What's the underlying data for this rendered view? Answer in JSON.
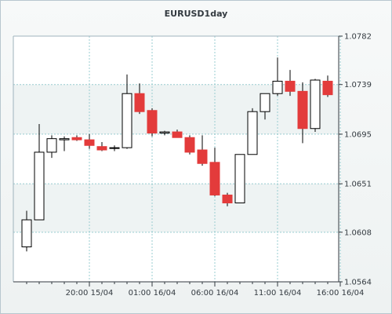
{
  "chart_data": {
    "type": "candlestick",
    "title": "EURUSD1day",
    "xlabel": "",
    "ylabel": "",
    "ylim": [
      1.0564,
      1.0782
    ],
    "y_ticks": [
      "1.0782",
      "1.0739",
      "1.0695",
      "1.0651",
      "1.0608",
      "1.0564"
    ],
    "y_tick_values": [
      1.0782,
      1.0739,
      1.0695,
      1.0651,
      1.0608,
      1.0564
    ],
    "x_tick_labels": [
      "20:00 15/04",
      "01:00 16/04",
      "06:00 16/04",
      "11:00 16/04",
      "16:00 16/04"
    ],
    "x_tick_index": [
      5,
      10,
      15,
      20,
      25
    ],
    "grid": true,
    "up_color": "#ffffff",
    "down_color": "#e33b3b",
    "candles": [
      {
        "o": 1.0595,
        "h": 1.0627,
        "l": 1.0591,
        "c": 1.0619
      },
      {
        "o": 1.0619,
        "h": 1.0704,
        "l": 1.0619,
        "c": 1.0679
      },
      {
        "o": 1.0679,
        "h": 1.0694,
        "l": 1.0674,
        "c": 1.0691
      },
      {
        "o": 1.069,
        "h": 1.0693,
        "l": 1.068,
        "c": 1.0691
      },
      {
        "o": 1.0692,
        "h": 1.0694,
        "l": 1.0689,
        "c": 1.069
      },
      {
        "o": 1.069,
        "h": 1.0695,
        "l": 1.0682,
        "c": 1.0685
      },
      {
        "o": 1.0684,
        "h": 1.0688,
        "l": 1.068,
        "c": 1.0681
      },
      {
        "o": 1.0683,
        "h": 1.0685,
        "l": 1.068,
        "c": 1.0683
      },
      {
        "o": 1.0683,
        "h": 1.0748,
        "l": 1.0682,
        "c": 1.0731
      },
      {
        "o": 1.0731,
        "h": 1.074,
        "l": 1.0713,
        "c": 1.0715
      },
      {
        "o": 1.0716,
        "h": 1.0718,
        "l": 1.0693,
        "c": 1.0696
      },
      {
        "o": 1.0696,
        "h": 1.0698,
        "l": 1.0694,
        "c": 1.0697
      },
      {
        "o": 1.0697,
        "h": 1.0699,
        "l": 1.0692,
        "c": 1.0692
      },
      {
        "o": 1.0692,
        "h": 1.0694,
        "l": 1.0677,
        "c": 1.0679
      },
      {
        "o": 1.0681,
        "h": 1.0694,
        "l": 1.0667,
        "c": 1.0669
      },
      {
        "o": 1.067,
        "h": 1.0683,
        "l": 1.064,
        "c": 1.0641
      },
      {
        "o": 1.0641,
        "h": 1.0643,
        "l": 1.0631,
        "c": 1.0634
      },
      {
        "o": 1.0634,
        "h": 1.0677,
        "l": 1.0634,
        "c": 1.0677
      },
      {
        "o": 1.0677,
        "h": 1.0718,
        "l": 1.0677,
        "c": 1.0715
      },
      {
        "o": 1.0715,
        "h": 1.0731,
        "l": 1.0708,
        "c": 1.0731
      },
      {
        "o": 1.0731,
        "h": 1.0763,
        "l": 1.0729,
        "c": 1.0742
      },
      {
        "o": 1.0742,
        "h": 1.0752,
        "l": 1.0729,
        "c": 1.0733
      },
      {
        "o": 1.0733,
        "h": 1.0741,
        "l": 1.0687,
        "c": 1.07
      },
      {
        "o": 1.07,
        "h": 1.0744,
        "l": 1.0697,
        "c": 1.0743
      },
      {
        "o": 1.0742,
        "h": 1.0747,
        "l": 1.0728,
        "c": 1.073
      }
    ]
  }
}
